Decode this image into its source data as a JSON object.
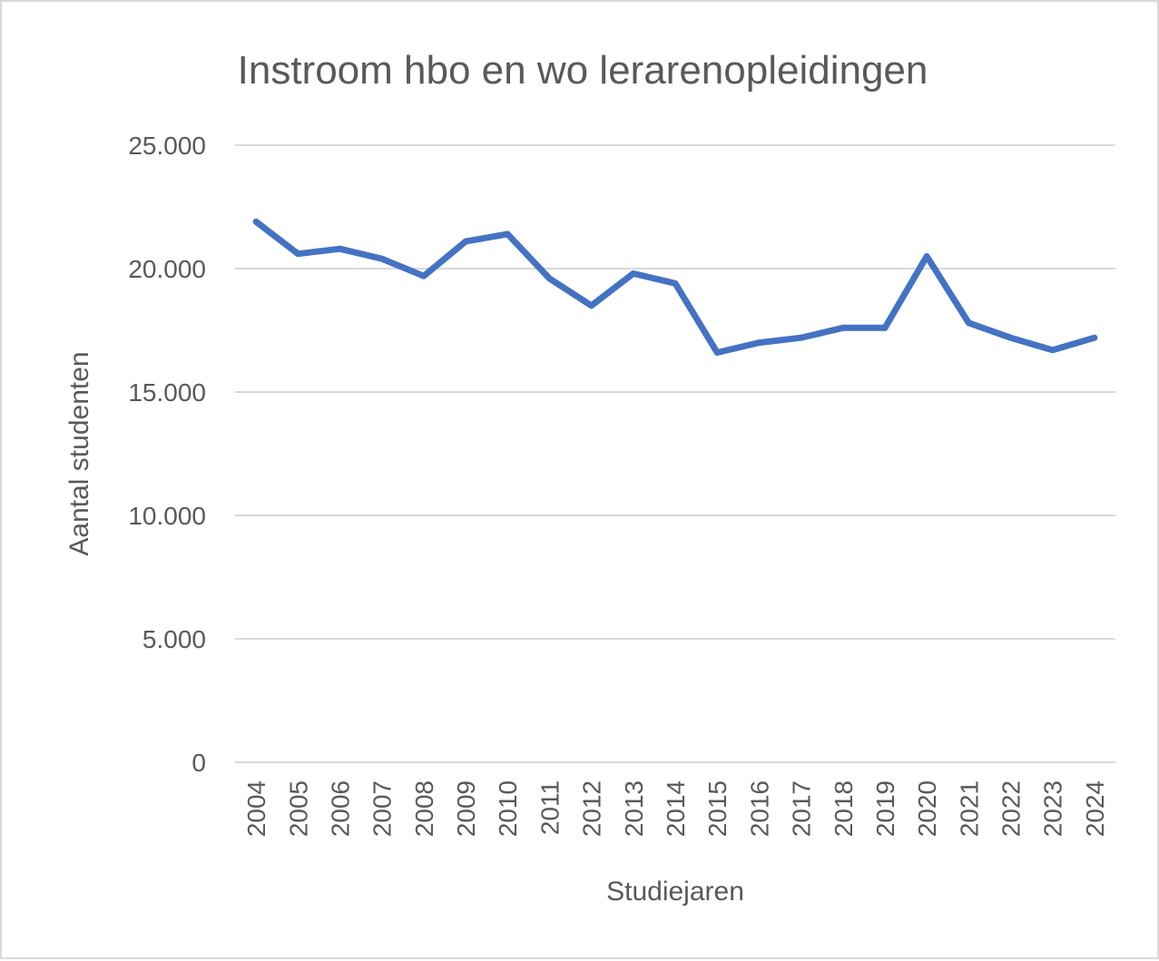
{
  "chart_data": {
    "type": "line",
    "title": "Instroom hbo en wo lerarenopleidingen",
    "xlabel": "Studiejaren",
    "ylabel": "Aantal studenten",
    "categories": [
      "2004",
      "2005",
      "2006",
      "2007",
      "2008",
      "2009",
      "2010",
      "2011",
      "2012",
      "2013",
      "2014",
      "2015",
      "2016",
      "2017",
      "2018",
      "2019",
      "2020",
      "2021",
      "2022",
      "2023",
      "2024"
    ],
    "series": [
      {
        "color": "#4472c4",
        "values": [
          21900,
          20600,
          20800,
          20400,
          19700,
          21100,
          21400,
          19600,
          18500,
          19800,
          19400,
          16600,
          17000,
          17200,
          17600,
          17600,
          20500,
          17800,
          17200,
          16700,
          17200
        ]
      }
    ],
    "ylim": [
      0,
      25000
    ],
    "yticks": [
      0,
      5000,
      10000,
      15000,
      20000,
      25000
    ],
    "ytick_labels": [
      "0",
      "5.000",
      "10.000",
      "15.000",
      "20.000",
      "25.000"
    ],
    "grid": true,
    "legend": "none"
  }
}
